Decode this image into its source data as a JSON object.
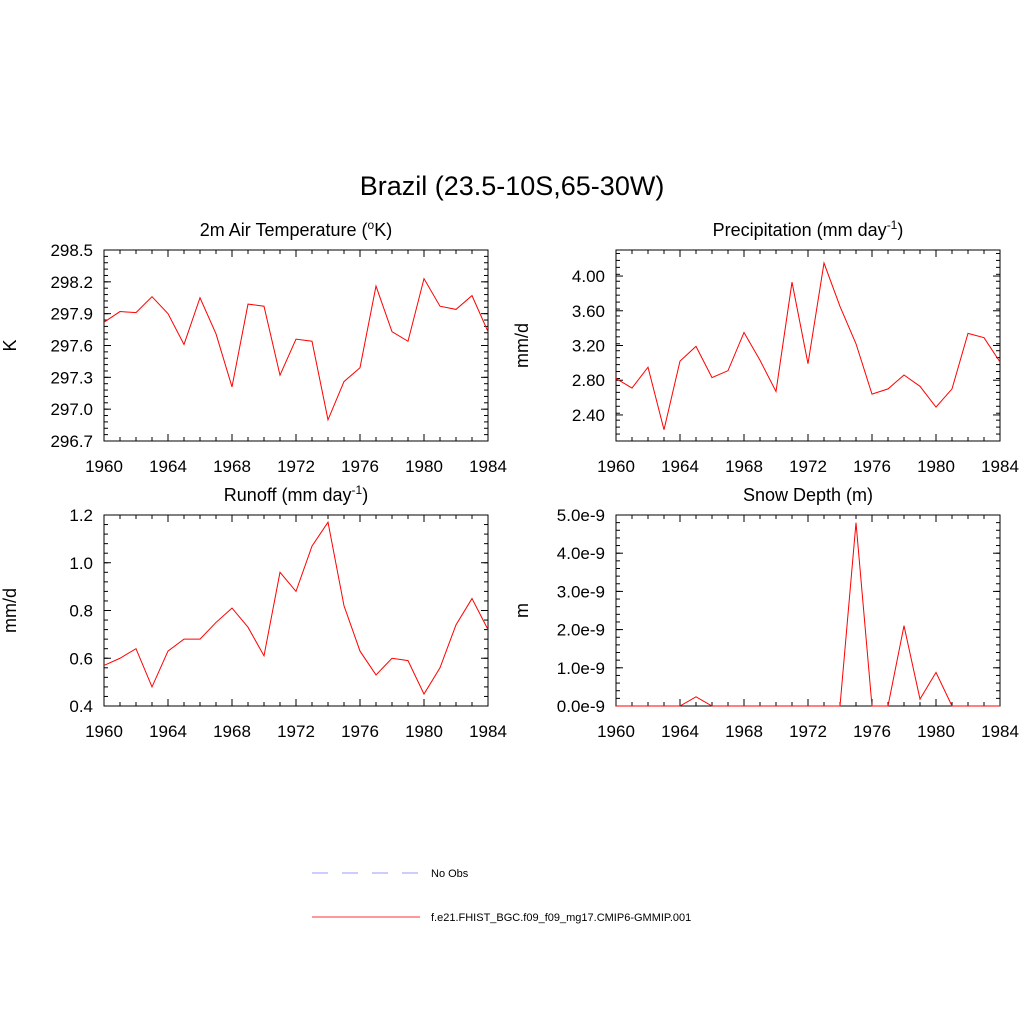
{
  "title": "Brazil (23.5-10S,65-30W)",
  "legend": {
    "items": [
      {
        "label": "No Obs",
        "color": "#9999ff",
        "dash": true
      },
      {
        "label": "f.e21.FHIST_BGC.f09_f09_mg17.CMIP6-GMMIP.001",
        "color": "#ff3333",
        "dash": false
      }
    ]
  },
  "line_color": "#ff0000",
  "chart_data": [
    {
      "type": "line",
      "title_main": "2m Air Temperature (",
      "title_sup": "o",
      "title_rest": "K)",
      "ylabel": "K",
      "xlim": [
        1960,
        1984
      ],
      "ylim": [
        296.7,
        298.5
      ],
      "xticks": [
        "1960",
        "1964",
        "1968",
        "1972",
        "1976",
        "1980",
        "1984"
      ],
      "yticks": [
        "296.7",
        "297.0",
        "297.3",
        "297.6",
        "297.9",
        "298.2",
        "298.5"
      ],
      "x": [
        1960,
        1961,
        1962,
        1963,
        1964,
        1965,
        1966,
        1967,
        1968,
        1969,
        1970,
        1971,
        1972,
        1973,
        1974,
        1975,
        1976,
        1977,
        1978,
        1979,
        1980,
        1981,
        1982,
        1983,
        1984
      ],
      "values": [
        297.82,
        297.92,
        297.91,
        298.06,
        297.9,
        297.61,
        298.05,
        297.71,
        297.21,
        297.99,
        297.97,
        297.32,
        297.66,
        297.64,
        296.9,
        297.26,
        297.39,
        298.16,
        297.73,
        297.64,
        298.23,
        297.97,
        297.94,
        298.07,
        297.73
      ]
    },
    {
      "type": "line",
      "title_main": "Precipitation (mm day",
      "title_sup": "-1",
      "title_rest": ")",
      "ylabel": "mm/d",
      "xlim": [
        1960,
        1984
      ],
      "ylim": [
        2.1,
        4.3
      ],
      "xticks": [
        "1960",
        "1964",
        "1968",
        "1972",
        "1976",
        "1980",
        "1984"
      ],
      "yticks": [
        "2.40",
        "2.80",
        "3.20",
        "3.60",
        "4.00"
      ],
      "x": [
        1960,
        1961,
        1962,
        1963,
        1964,
        1965,
        1966,
        1967,
        1968,
        1969,
        1970,
        1971,
        1972,
        1973,
        1974,
        1975,
        1976,
        1977,
        1978,
        1979,
        1980,
        1981,
        1982,
        1983,
        1984
      ],
      "values": [
        2.82,
        2.71,
        2.95,
        2.23,
        3.02,
        3.19,
        2.83,
        2.91,
        3.35,
        3.03,
        2.67,
        3.93,
        2.99,
        4.15,
        3.65,
        3.22,
        2.64,
        2.7,
        2.86,
        2.73,
        2.49,
        2.7,
        3.34,
        3.29,
        3.01
      ]
    },
    {
      "type": "line",
      "title_main": "Runoff (mm day",
      "title_sup": "-1",
      "title_rest": ")",
      "ylabel": "mm/d",
      "xlim": [
        1960,
        1984
      ],
      "ylim": [
        0.4,
        1.2
      ],
      "xticks": [
        "1960",
        "1964",
        "1968",
        "1972",
        "1976",
        "1980",
        "1984"
      ],
      "yticks": [
        "0.4",
        "0.6",
        "0.8",
        "1.0",
        "1.2"
      ],
      "x": [
        1960,
        1961,
        1962,
        1963,
        1964,
        1965,
        1966,
        1967,
        1968,
        1969,
        1970,
        1971,
        1972,
        1973,
        1974,
        1975,
        1976,
        1977,
        1978,
        1979,
        1980,
        1981,
        1982,
        1983,
        1984
      ],
      "values": [
        0.57,
        0.6,
        0.64,
        0.48,
        0.63,
        0.68,
        0.68,
        0.75,
        0.81,
        0.73,
        0.61,
        0.96,
        0.88,
        1.07,
        1.17,
        0.82,
        0.63,
        0.53,
        0.6,
        0.59,
        0.45,
        0.56,
        0.74,
        0.85,
        0.72
      ]
    },
    {
      "type": "line",
      "title_main": "Snow Depth (m)",
      "title_sup": "",
      "title_rest": "",
      "ylabel": "m",
      "xlim": [
        1960,
        1984
      ],
      "ylim": [
        0.0,
        5e-09
      ],
      "xticks": [
        "1960",
        "1964",
        "1968",
        "1972",
        "1976",
        "1980",
        "1984"
      ],
      "yticks": [
        "0.0e-9",
        "1.0e-9",
        "2.0e-9",
        "3.0e-9",
        "4.0e-9",
        "5.0e-9"
      ],
      "x": [
        1960,
        1961,
        1962,
        1963,
        1964,
        1965,
        1966,
        1967,
        1968,
        1969,
        1970,
        1971,
        1972,
        1973,
        1974,
        1975,
        1976,
        1977,
        1978,
        1979,
        1980,
        1981,
        1982,
        1983,
        1984
      ],
      "values": [
        0,
        0,
        0,
        0,
        0,
        2.4e-10,
        0,
        0,
        0,
        0,
        0,
        0,
        0,
        0,
        0,
        4.8e-09,
        0,
        0,
        2.1e-09,
        1.8e-10,
        8.8e-10,
        0,
        0,
        0,
        0
      ]
    }
  ]
}
